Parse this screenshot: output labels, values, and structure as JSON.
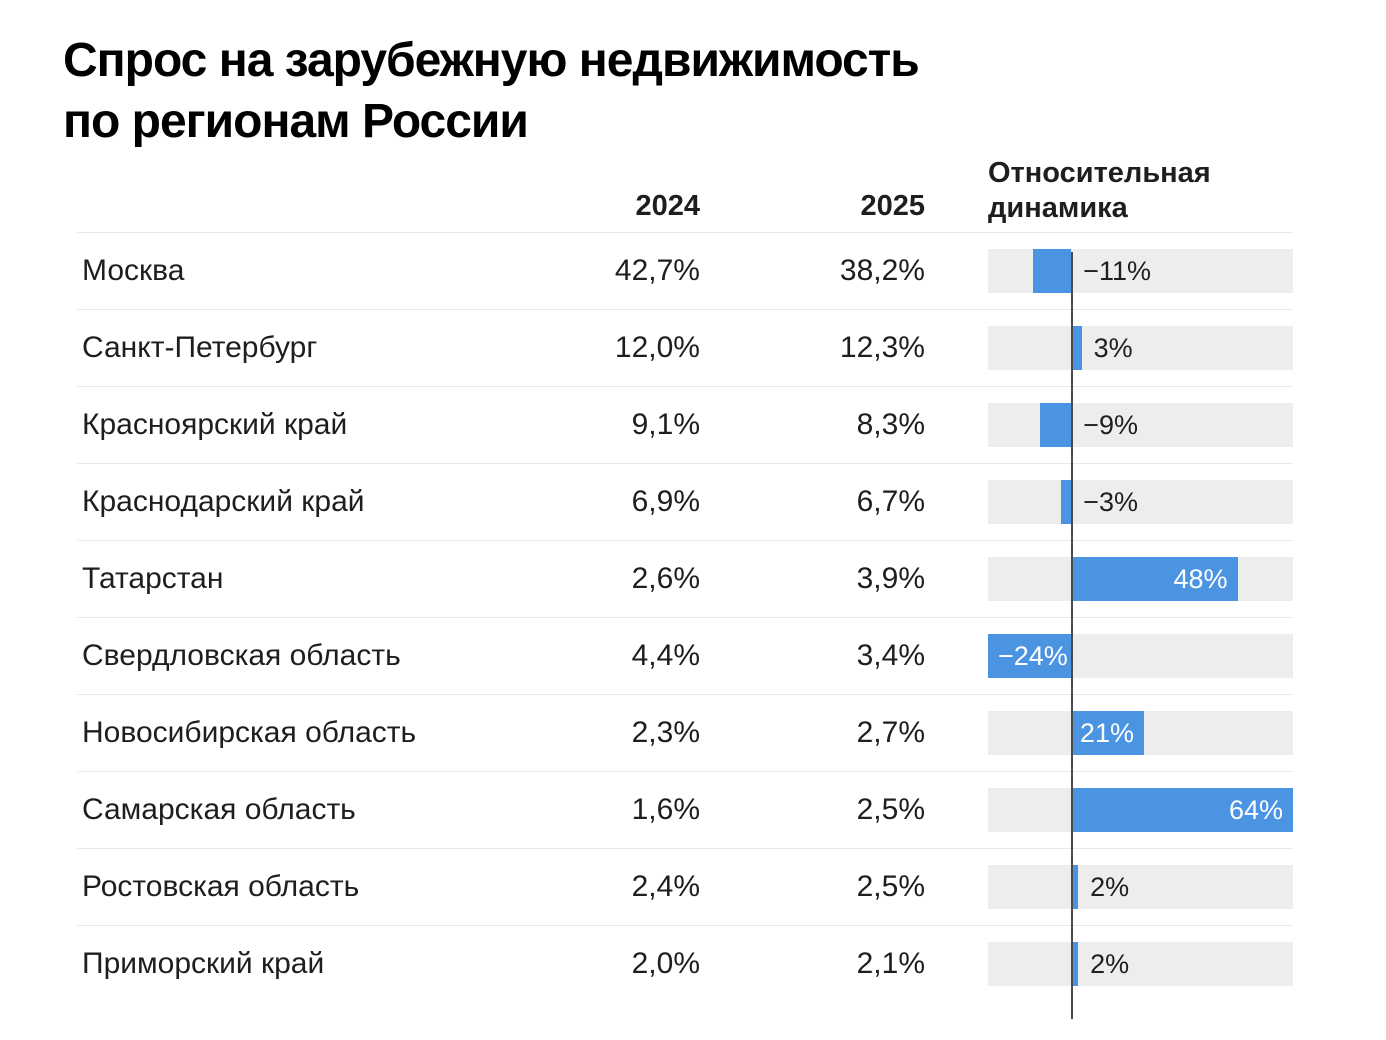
{
  "title": {
    "line1": "Спрос на зарубежную недвижимость",
    "line2": "по регионам России"
  },
  "columns": {
    "col_2024": "2024",
    "col_2025": "2025",
    "dynamics_line1": "Относительная",
    "dynamics_line2": "динамика"
  },
  "rows": [
    {
      "region": "Москва",
      "value_2024": "42,7%",
      "value_2025": "38,2%",
      "change": -11,
      "change_label": "−11%"
    },
    {
      "region": "Санкт-Петербург",
      "value_2024": "12,0%",
      "value_2025": "12,3%",
      "change": 3,
      "change_label": "3%"
    },
    {
      "region": "Красноярский край",
      "value_2024": "9,1%",
      "value_2025": "8,3%",
      "change": -9,
      "change_label": "−9%"
    },
    {
      "region": "Краснодарский край",
      "value_2024": "6,9%",
      "value_2025": "6,7%",
      "change": -3,
      "change_label": "−3%"
    },
    {
      "region": "Татарстан",
      "value_2024": "2,6%",
      "value_2025": "3,9%",
      "change": 48,
      "change_label": "48%"
    },
    {
      "region": "Свердловская область",
      "value_2024": "4,4%",
      "value_2025": "3,4%",
      "change": -24,
      "change_label": "−24%"
    },
    {
      "region": "Новосибирская область",
      "value_2024": "2,3%",
      "value_2025": "2,7%",
      "change": 21,
      "change_label": "21%"
    },
    {
      "region": "Самарская область",
      "value_2024": "1,6%",
      "value_2025": "2,5%",
      "change": 64,
      "change_label": "64%"
    },
    {
      "region": "Ростовская область",
      "value_2024": "2,4%",
      "value_2025": "2,5%",
      "change": 2,
      "change_label": "2%"
    },
    {
      "region": "Приморский край",
      "value_2024": "2,0%",
      "value_2025": "2,1%",
      "change": 2,
      "change_label": "2%"
    }
  ],
  "chart_data": {
    "type": "bar",
    "orientation": "horizontal",
    "title": "Спрос на зарубежную недвижимость по регионам России",
    "categories": [
      "Москва",
      "Санкт-Петербург",
      "Красноярский край",
      "Краснодарский край",
      "Татарстан",
      "Свердловская область",
      "Новосибирская область",
      "Самарская область",
      "Ростовская область",
      "Приморский край"
    ],
    "series": [
      {
        "name": "2024",
        "unit": "%",
        "values": [
          42.7,
          12.0,
          9.1,
          6.9,
          2.6,
          4.4,
          2.3,
          1.6,
          2.4,
          2.0
        ]
      },
      {
        "name": "2025",
        "unit": "%",
        "values": [
          38.2,
          12.3,
          8.3,
          6.7,
          3.9,
          3.4,
          2.7,
          2.5,
          2.5,
          2.1
        ]
      },
      {
        "name": "Относительная динамика",
        "unit": "%",
        "values": [
          -11,
          3,
          -9,
          -3,
          48,
          -24,
          21,
          64,
          2,
          2
        ]
      }
    ],
    "axis": {
      "min": -24,
      "max": 64,
      "baseline": 0
    },
    "legend": "none",
    "grid": "off"
  },
  "colors": {
    "bar": "#4a94e2",
    "track": "#ededed",
    "baseline": "#4a4a4a",
    "divider": "#e8e8e8",
    "text": "#1e1e1e"
  }
}
